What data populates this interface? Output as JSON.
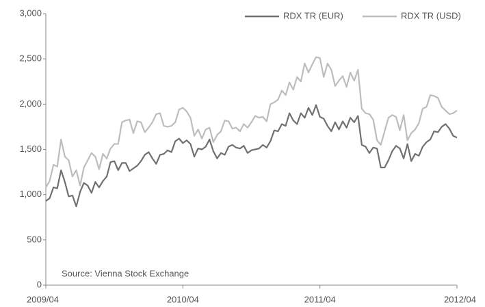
{
  "chart_data": {
    "type": "line",
    "annotation": "Source: Vienna Stock Exchange",
    "categories": [
      "2009/04",
      null,
      null,
      null,
      null,
      null,
      null,
      null,
      null,
      null,
      null,
      null,
      null,
      null,
      null,
      null,
      null,
      null,
      null,
      null,
      null,
      null,
      null,
      null,
      null,
      null,
      null,
      null,
      null,
      null,
      null,
      null,
      null,
      null,
      null,
      null,
      "2010/04",
      null,
      null,
      null,
      null,
      null,
      null,
      null,
      null,
      null,
      null,
      null,
      null,
      null,
      null,
      null,
      null,
      null,
      null,
      null,
      null,
      null,
      null,
      null,
      null,
      null,
      null,
      null,
      null,
      null,
      null,
      null,
      null,
      null,
      null,
      null,
      "2011/04",
      null,
      null,
      null,
      null,
      null,
      null,
      null,
      null,
      null,
      null,
      null,
      null,
      null,
      null,
      null,
      null,
      null,
      null,
      null,
      null,
      null,
      null,
      null,
      null,
      null,
      null,
      null,
      null,
      null,
      null,
      null,
      null,
      null,
      null,
      null,
      "2012/04"
    ],
    "series": [
      {
        "name": "RDX TR (EUR)",
        "color": "#707070",
        "values": [
          930,
          960,
          1080,
          1070,
          1270,
          1140,
          980,
          990,
          870,
          1030,
          1130,
          1100,
          1020,
          1140,
          1080,
          1150,
          1200,
          1360,
          1370,
          1270,
          1350,
          1350,
          1260,
          1290,
          1320,
          1370,
          1440,
          1470,
          1400,
          1340,
          1440,
          1450,
          1490,
          1470,
          1590,
          1620,
          1570,
          1600,
          1560,
          1420,
          1510,
          1500,
          1530,
          1610,
          1480,
          1400,
          1460,
          1440,
          1530,
          1550,
          1520,
          1510,
          1540,
          1460,
          1490,
          1500,
          1510,
          1550,
          1520,
          1590,
          1710,
          1700,
          1780,
          1760,
          1900,
          1820,
          1780,
          1900,
          1850,
          1960,
          1880,
          1990,
          1860,
          1840,
          1760,
          1700,
          1800,
          1720,
          1810,
          1740,
          1850,
          1800,
          1870,
          1550,
          1530,
          1460,
          1520,
          1510,
          1300,
          1300,
          1380,
          1480,
          1540,
          1510,
          1400,
          1560,
          1370,
          1450,
          1430,
          1530,
          1580,
          1610,
          1700,
          1690,
          1750,
          1780,
          1730,
          1650,
          1630
        ]
      },
      {
        "name": "RDX TR (USD)",
        "color": "#bdbdbd",
        "values": [
          1080,
          1150,
          1330,
          1310,
          1610,
          1420,
          1380,
          1200,
          1270,
          1100,
          1300,
          1380,
          1460,
          1420,
          1280,
          1450,
          1400,
          1510,
          1560,
          1560,
          1800,
          1820,
          1830,
          1680,
          1810,
          1800,
          1690,
          1740,
          1800,
          1890,
          1900,
          1760,
          1750,
          1760,
          1800,
          1940,
          1960,
          1920,
          1850,
          1650,
          1720,
          1620,
          1720,
          1740,
          1580,
          1660,
          1700,
          1820,
          1810,
          1730,
          1740,
          1700,
          1780,
          1740,
          1800,
          1870,
          1850,
          1860,
          1810,
          2000,
          2020,
          2050,
          2150,
          2100,
          2240,
          2160,
          2300,
          2250,
          2450,
          2350,
          2440,
          2520,
          2510,
          2300,
          2450,
          2380,
          2200,
          2260,
          2310,
          2190,
          2350,
          2260,
          2380,
          1950,
          1900,
          1890,
          1830,
          1600,
          1550,
          1700,
          1850,
          1880,
          1860,
          1710,
          1880,
          1600,
          1680,
          1720,
          1790,
          1950,
          1970,
          2100,
          2090,
          2070,
          1970,
          1930,
          1890,
          1900,
          1930
        ]
      }
    ],
    "ylim": [
      0,
      3000
    ],
    "yticks": [
      0,
      500,
      {
        "value": 1000,
        "label": "1,000"
      },
      {
        "value": 1500,
        "label": "1,500"
      },
      {
        "value": 2000,
        "label": "2,000"
      },
      {
        "value": 2500,
        "label": "2,500"
      },
      {
        "value": 3000,
        "label": "3,000"
      }
    ],
    "grid": false,
    "legend": "top-right"
  }
}
